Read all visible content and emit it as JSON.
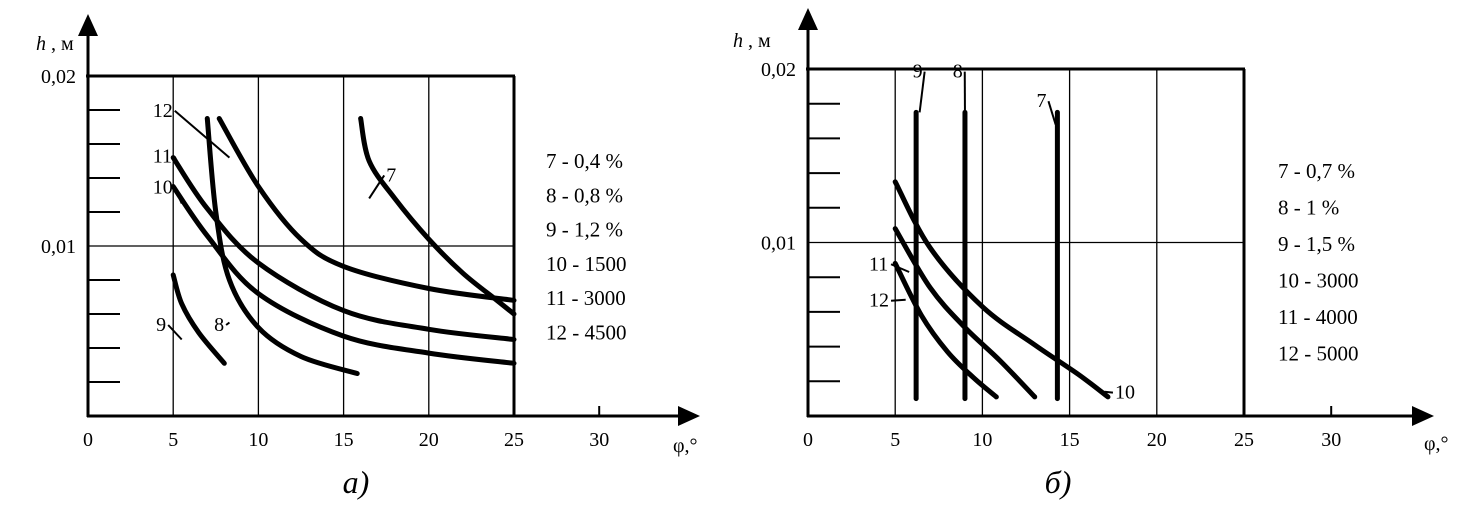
{
  "chart_data": [
    {
      "type": "line",
      "caption": "а)",
      "xlabel": "φ,°",
      "ylabel": "h , м",
      "xlim": [
        0,
        25
      ],
      "ylim": [
        0,
        0.02
      ],
      "x_ticks": [
        "0",
        "5",
        "10",
        "15",
        "20",
        "25",
        "30"
      ],
      "y_ticks": [
        "0,01",
        "0,02"
      ],
      "legend": [
        "7 - 0,4 %",
        "8 - 0,8 %",
        "9 - 1,2 %",
        "10 - 1500",
        "11 - 3000",
        "12 - 4500"
      ],
      "series": [
        {
          "name": "7",
          "points": [
            [
              16,
              0.0175
            ],
            [
              16.5,
              0.015
            ],
            [
              18,
              0.0128
            ],
            [
              20,
              0.0104
            ],
            [
              22,
              0.0084
            ],
            [
              24,
              0.0068
            ],
            [
              25,
              0.006
            ]
          ]
        },
        {
          "name": "8",
          "points": [
            [
              7,
              0.0175
            ],
            [
              7.5,
              0.012
            ],
            [
              8.3,
              0.008
            ],
            [
              10,
              0.0052
            ],
            [
              12.5,
              0.0035
            ],
            [
              15.8,
              0.0025
            ]
          ]
        },
        {
          "name": "9",
          "points": [
            [
              5,
              0.0083
            ],
            [
              5.5,
              0.0066
            ],
            [
              6.5,
              0.0049
            ],
            [
              8,
              0.0031
            ]
          ]
        },
        {
          "name": "10",
          "points": [
            [
              5,
              0.0135
            ],
            [
              7,
              0.0106
            ],
            [
              10,
              0.0072
            ],
            [
              15,
              0.0047
            ],
            [
              20,
              0.0037
            ],
            [
              25,
              0.0031
            ]
          ]
        },
        {
          "name": "11",
          "points": [
            [
              5,
              0.0152
            ],
            [
              7,
              0.0122
            ],
            [
              10,
              0.009
            ],
            [
              15,
              0.0062
            ],
            [
              20,
              0.0051
            ],
            [
              25,
              0.0045
            ]
          ]
        },
        {
          "name": "12",
          "points": [
            [
              7.7,
              0.0175
            ],
            [
              10,
              0.0135
            ],
            [
              12.5,
              0.0104
            ],
            [
              15,
              0.0088
            ],
            [
              20,
              0.0075
            ],
            [
              25,
              0.0068
            ]
          ]
        }
      ],
      "curve_labels": [
        {
          "text": "7",
          "x": 17.5,
          "y": 0.0138,
          "anchor": [
            16.5,
            0.0128
          ]
        },
        {
          "text": "8",
          "x": 7.4,
          "y": 0.005,
          "anchor": [
            8.3,
            0.0055
          ]
        },
        {
          "text": "9",
          "x": 4,
          "y": 0.005,
          "anchor": [
            5.5,
            0.0045
          ]
        },
        {
          "text": "10",
          "x": 3.8,
          "y": 0.0131,
          "anchor": [
            5.5,
            0.0125
          ]
        },
        {
          "text": "11",
          "x": 3.8,
          "y": 0.0149,
          "anchor": [
            5.5,
            0.0143
          ]
        },
        {
          "text": "12",
          "x": 3.8,
          "y": 0.0176,
          "anchor": [
            8.3,
            0.0152
          ]
        }
      ]
    },
    {
      "type": "line",
      "caption": "б)",
      "xlabel": "φ,°",
      "ylabel": "h , м",
      "xlim": [
        0,
        25
      ],
      "ylim": [
        0,
        0.02
      ],
      "x_ticks": [
        "0",
        "5",
        "10",
        "15",
        "20",
        "25",
        "30"
      ],
      "y_ticks": [
        "0,01",
        "0,02"
      ],
      "legend": [
        "7 - 0,7 %",
        "8 - 1 %",
        "9 - 1,5 %",
        "10 - 3000",
        "11 - 4000",
        "12 - 5000"
      ],
      "series": [
        {
          "name": "7",
          "points": [
            [
              14.3,
              0.0175
            ],
            [
              14.3,
              0.001
            ]
          ]
        },
        {
          "name": "8",
          "points": [
            [
              9,
              0.0175
            ],
            [
              9,
              0.001
            ]
          ]
        },
        {
          "name": "9",
          "points": [
            [
              6.2,
              0.0175
            ],
            [
              6.2,
              0.001
            ]
          ]
        },
        {
          "name": "10",
          "points": [
            [
              5,
              0.0135
            ],
            [
              7,
              0.0097
            ],
            [
              10,
              0.0063
            ],
            [
              13,
              0.0041
            ],
            [
              15.5,
              0.0024
            ],
            [
              17.2,
              0.0011
            ]
          ]
        },
        {
          "name": "11",
          "points": [
            [
              5,
              0.0108
            ],
            [
              7,
              0.0074
            ],
            [
              9,
              0.0051
            ],
            [
              11,
              0.0032
            ],
            [
              13,
              0.0011
            ]
          ]
        },
        {
          "name": "12",
          "points": [
            [
              5,
              0.0088
            ],
            [
              6.5,
              0.0058
            ],
            [
              8,
              0.0037
            ],
            [
              9.5,
              0.0022
            ],
            [
              10.8,
              0.0011
            ]
          ]
        }
      ],
      "curve_labels": [
        {
          "text": "7",
          "x": 13.1,
          "y": 0.0178,
          "anchor": [
            14.2,
            0.0168
          ]
        },
        {
          "text": "8",
          "x": 8.3,
          "y": 0.0195,
          "anchor": [
            9,
            0.0175
          ]
        },
        {
          "text": "9",
          "x": 6,
          "y": 0.0195,
          "anchor": [
            6.4,
            0.0175
          ]
        },
        {
          "text": "10",
          "x": 17.6,
          "y": 0.001,
          "anchor": [
            17,
            0.0014
          ]
        },
        {
          "text": "11",
          "x": 3.5,
          "y": 0.0084,
          "anchor": [
            5.8,
            0.0083
          ]
        },
        {
          "text": "12",
          "x": 3.5,
          "y": 0.0063,
          "anchor": [
            5.6,
            0.0067
          ]
        }
      ]
    }
  ]
}
